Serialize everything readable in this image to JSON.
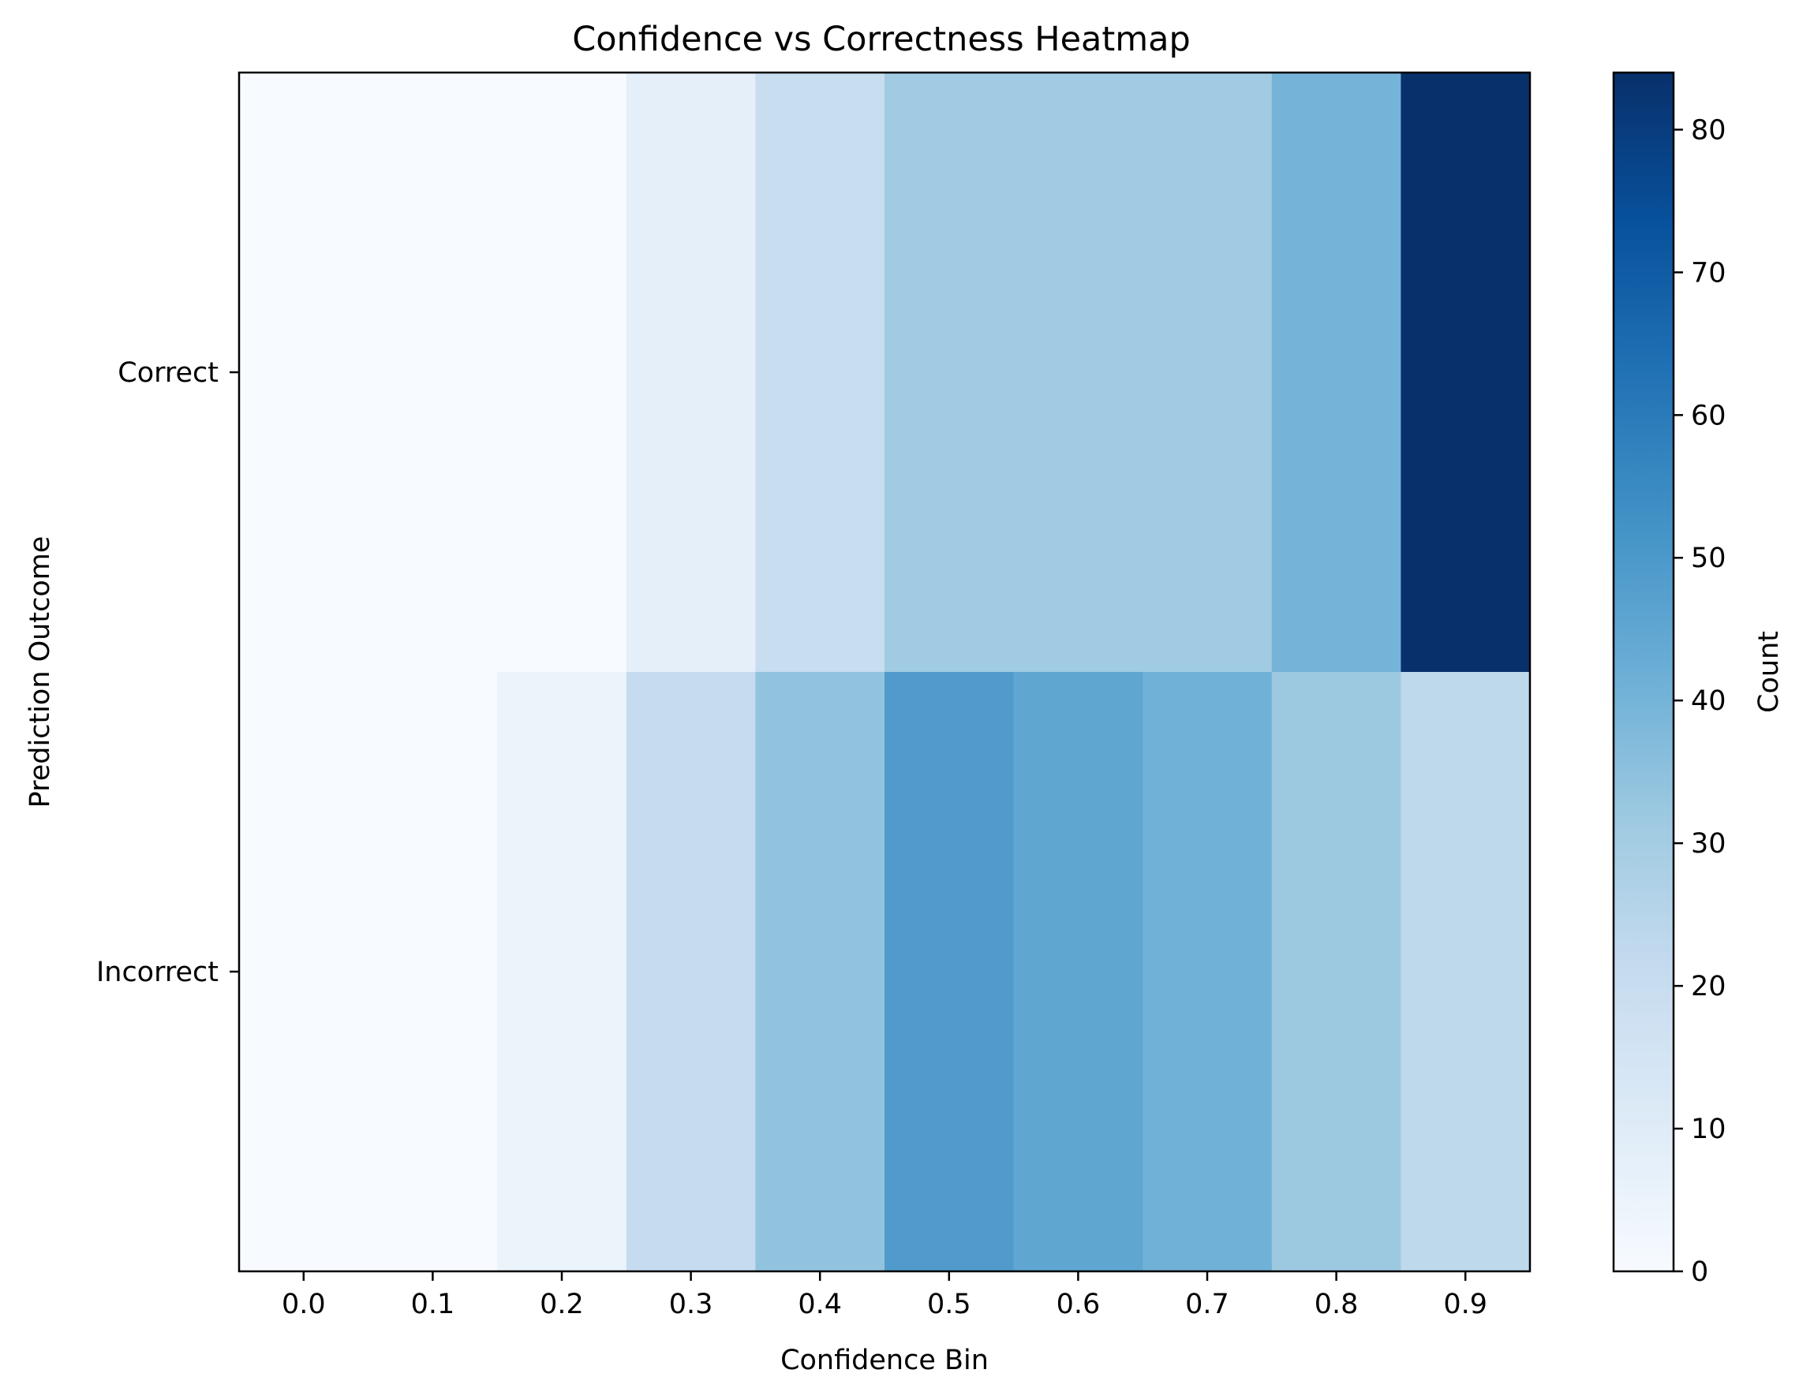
{
  "chart_data": {
    "type": "heatmap",
    "title": "Confidence vs Correctness Heatmap",
    "xlabel": "Confidence Bin",
    "ylabel": "Prediction Outcome",
    "x_tick_labels": [
      "0.0",
      "0.1",
      "0.2",
      "0.3",
      "0.4",
      "0.5",
      "0.6",
      "0.7",
      "0.8",
      "0.9"
    ],
    "y_tick_labels": [
      "Correct",
      "Incorrect"
    ],
    "values": [
      [
        0,
        0,
        0,
        8,
        20,
        31,
        31,
        31,
        40,
        84
      ],
      [
        0,
        0,
        5,
        21,
        34,
        49,
        45,
        41,
        32,
        23
      ]
    ],
    "colormap": "Blues",
    "color_range": [
      0,
      84
    ],
    "colorbar": {
      "label": "Count",
      "ticks": [
        0,
        10,
        20,
        30,
        40,
        50,
        60,
        70,
        80
      ]
    },
    "grid": false
  }
}
